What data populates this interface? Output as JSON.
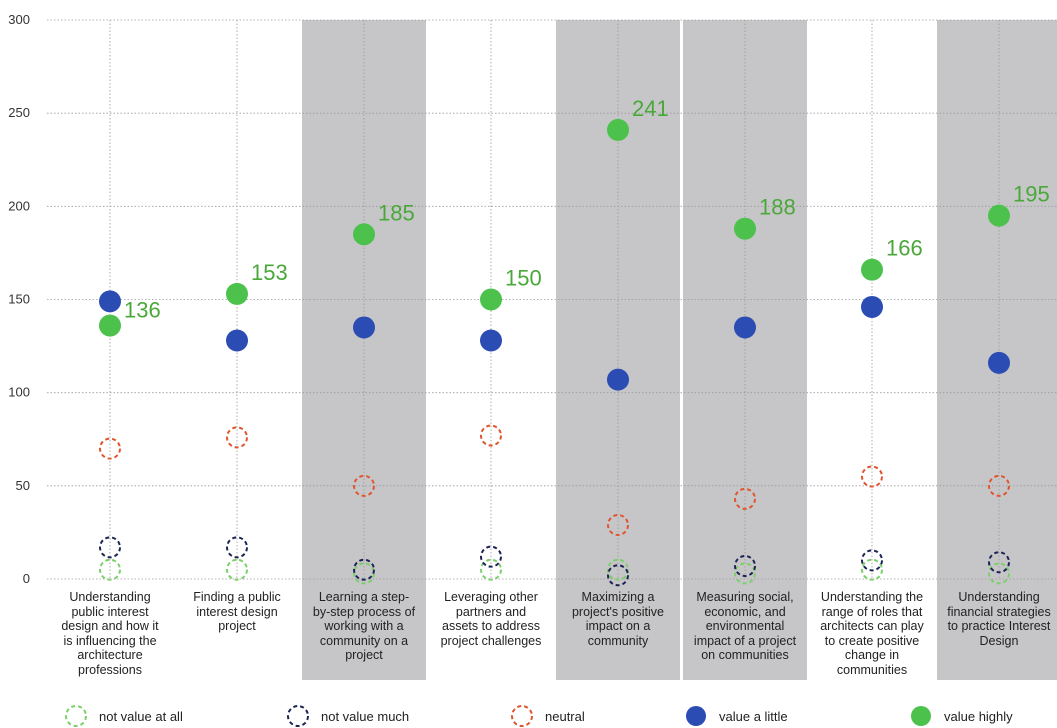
{
  "chart_data": {
    "type": "scatter",
    "title": "",
    "xlabel": "",
    "ylabel": "",
    "ylim": [
      0,
      300
    ],
    "yticks": [
      0,
      50,
      100,
      150,
      200,
      250,
      300
    ],
    "grid": true,
    "legend_position": "bottom",
    "categories": [
      [
        "Understanding",
        "public interest",
        "design and how it",
        "is influencing the",
        "architecture",
        "professions"
      ],
      [
        "Finding a public",
        "interest design",
        "project"
      ],
      [
        "Learning a step-",
        "by-step process of",
        "working with a",
        "community on a",
        "project"
      ],
      [
        "Leveraging other",
        "partners and",
        "assets to address",
        "project challenges"
      ],
      [
        "Maximizing a",
        "project's positive",
        "impact on a",
        "community"
      ],
      [
        "Measuring social,",
        "economic, and",
        "environmental",
        "impact of a project",
        "on communities"
      ],
      [
        "Understanding the",
        "range of roles that",
        "architects can play",
        "to create positive",
        "change in",
        "communities"
      ],
      [
        "Understanding",
        "financial strategies",
        "to practice Interest",
        "Design"
      ]
    ],
    "shaded_columns": [
      2,
      4,
      5,
      7
    ],
    "series": [
      {
        "name": "not value at all",
        "style": "dashed",
        "color": "#7ccf6b",
        "values": [
          5,
          5,
          3,
          5,
          5,
          3,
          5,
          3
        ]
      },
      {
        "name": "not value much",
        "style": "dashed",
        "color": "#1c2454",
        "values": [
          17,
          17,
          5,
          12,
          2,
          7,
          10,
          9
        ]
      },
      {
        "name": "neutral",
        "style": "dashed",
        "color": "#e0552e",
        "values": [
          70,
          76,
          50,
          77,
          29,
          43,
          55,
          50
        ]
      },
      {
        "name": "value a little",
        "style": "filled",
        "color": "#2b4cb3",
        "values": [
          149,
          128,
          135,
          128,
          107,
          135,
          146,
          116
        ]
      },
      {
        "name": "value highly",
        "style": "filled",
        "color": "#4cc24c",
        "values": [
          136,
          153,
          185,
          150,
          241,
          188,
          166,
          195
        ]
      }
    ],
    "labeled_series": "value highly",
    "label_color": "#4aa83a"
  }
}
